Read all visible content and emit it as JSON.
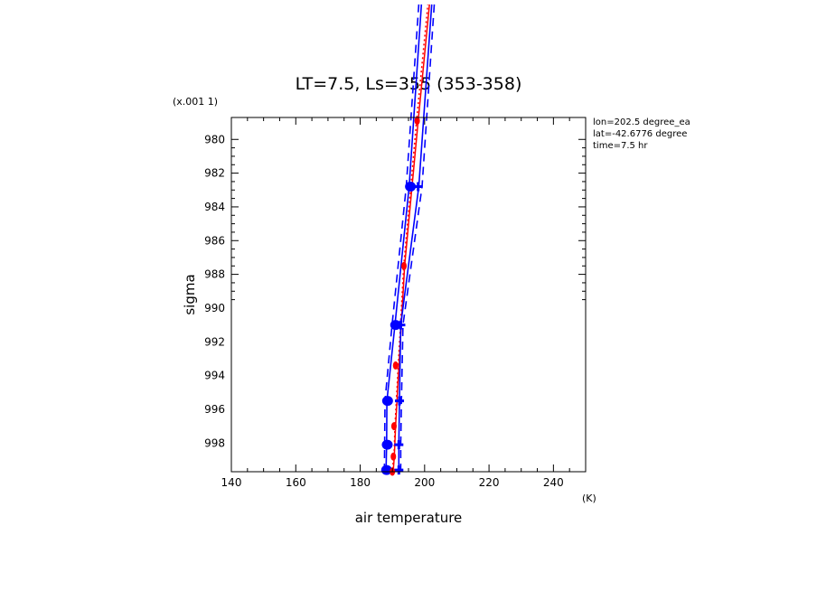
{
  "chart_data": {
    "type": "line",
    "title": "LT=7.5, Ls=355 (353-358)",
    "xlabel": "air temperature",
    "xunit": "(K)",
    "ylabel": "sigma",
    "yunit": "(x.001 1)",
    "xlim": [
      140,
      250
    ],
    "ylim": [
      999.7,
      978.7
    ],
    "y_inverted": true,
    "grid": false,
    "xticks": [
      "140",
      "160",
      "180",
      "200",
      "220",
      "240"
    ],
    "yticks": [
      "980",
      "982",
      "984",
      "986",
      "988",
      "990",
      "992",
      "994",
      "996",
      "998"
    ],
    "info_lines": [
      "lon=202.5 degree_ea",
      "lat=-42.6776 degree",
      "time=7.5 hr"
    ],
    "colors": {
      "red": "#ff0000",
      "blue": "#0000ff"
    },
    "series": [
      {
        "style": "red-dotted",
        "x": [
          189.8,
          190.5,
          190.8,
          193.5,
          197.5,
          201.0
        ],
        "y": [
          999.8,
          998.8,
          997.0,
          987.5,
          978.9,
          972.0
        ]
      },
      {
        "style": "red-solid",
        "x": [
          190.2,
          190.6,
          191.0,
          193.8,
          198.0,
          201.5
        ],
        "y": [
          999.8,
          998.8,
          997.0,
          987.5,
          978.9,
          972.0
        ]
      },
      {
        "style": "blue-solid",
        "x": [
          188.0,
          188.2,
          188.3,
          190.8,
          195.2,
          199.0
        ],
        "y": [
          999.7,
          998.1,
          995.5,
          991.0,
          982.8,
          972.0
        ]
      },
      {
        "style": "blue-solid",
        "x": [
          192.0,
          192.0,
          192.2,
          192.6,
          198.2,
          202.2
        ],
        "y": [
          999.7,
          998.1,
          995.5,
          991.0,
          982.8,
          972.0
        ]
      },
      {
        "style": "blue-dashed",
        "x": [
          187.5,
          187.6,
          187.7,
          189.9,
          194.3,
          198.2
        ],
        "y": [
          999.7,
          998.1,
          995.5,
          991.0,
          982.8,
          972.0
        ]
      },
      {
        "style": "blue-dashed",
        "x": [
          192.6,
          192.6,
          192.8,
          193.3,
          199.2,
          203.0
        ],
        "y": [
          999.7,
          998.1,
          995.5,
          991.0,
          982.8,
          972.0
        ]
      }
    ],
    "red_markers": {
      "x": [
        190.0,
        190.3,
        190.5,
        191.0,
        193.6,
        197.7
      ],
      "y": [
        999.7,
        998.8,
        997.0,
        993.4,
        987.5,
        978.9
      ]
    },
    "blue_markers": {
      "x": [
        188.2,
        188.4,
        188.5,
        191.0,
        195.6
      ],
      "y": [
        999.6,
        998.1,
        995.5,
        991.0,
        982.8
      ]
    },
    "blue_crosses": {
      "x": [
        192.0,
        192.0,
        192.2,
        192.6,
        198.0
      ],
      "y": [
        999.6,
        998.1,
        995.5,
        991.0,
        982.8
      ]
    }
  }
}
